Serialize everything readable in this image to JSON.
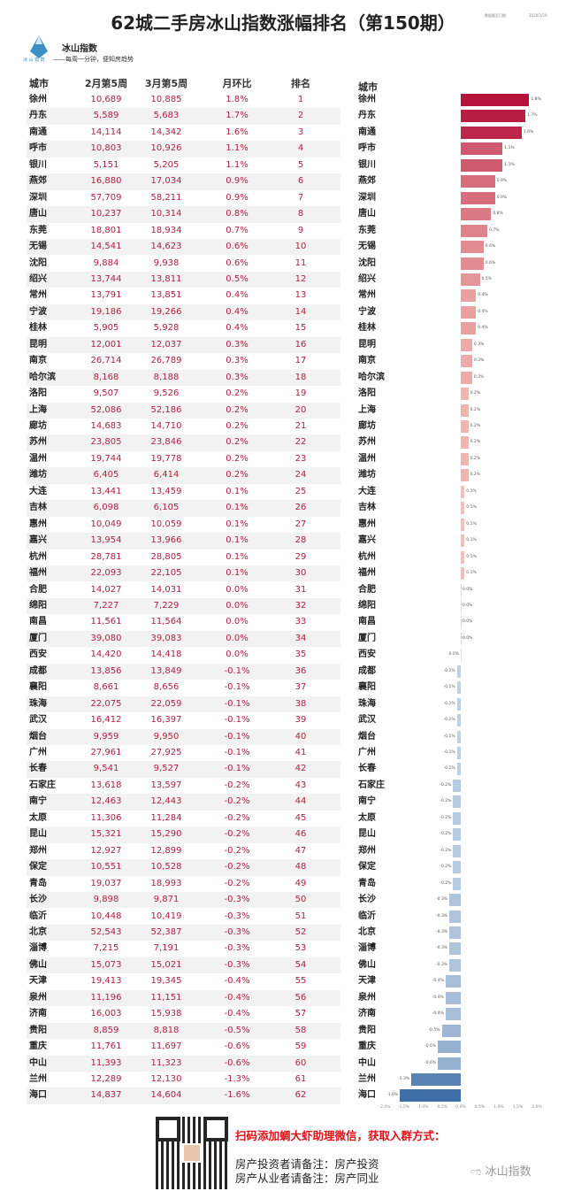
{
  "header": {
    "title": "62城二手房冰山指数涨幅排名（第150期）",
    "date_label": "数据截至日期",
    "date": "2020/3/29"
  },
  "brand": {
    "name": "冰山指数",
    "slogan": "——每周一分钟，便知房趋势",
    "logo_text": "冰 山 指 数"
  },
  "table": {
    "columns": [
      "城市",
      "2月第5周",
      "3月第5周",
      "月环比",
      "排名"
    ],
    "rows": [
      [
        "徐州",
        "10,689",
        "10,885",
        "1.8%",
        "1"
      ],
      [
        "丹东",
        "5,589",
        "5,683",
        "1.7%",
        "2"
      ],
      [
        "南通",
        "14,114",
        "14,342",
        "1.6%",
        "3"
      ],
      [
        "呼市",
        "10,803",
        "10,926",
        "1.1%",
        "4"
      ],
      [
        "银川",
        "5,151",
        "5,205",
        "1.1%",
        "5"
      ],
      [
        "燕郊",
        "16,880",
        "17,034",
        "0.9%",
        "6"
      ],
      [
        "深圳",
        "57,709",
        "58,211",
        "0.9%",
        "7"
      ],
      [
        "唐山",
        "10,237",
        "10,314",
        "0.8%",
        "8"
      ],
      [
        "东莞",
        "18,801",
        "18,934",
        "0.7%",
        "9"
      ],
      [
        "无锡",
        "14,541",
        "14,623",
        "0.6%",
        "10"
      ],
      [
        "沈阳",
        "9,884",
        "9,938",
        "0.6%",
        "11"
      ],
      [
        "绍兴",
        "13,744",
        "13,811",
        "0.5%",
        "12"
      ],
      [
        "常州",
        "13,791",
        "13,851",
        "0.4%",
        "13"
      ],
      [
        "宁波",
        "19,186",
        "19,266",
        "0.4%",
        "14"
      ],
      [
        "桂林",
        "5,905",
        "5,928",
        "0.4%",
        "15"
      ],
      [
        "昆明",
        "12,001",
        "12,037",
        "0.3%",
        "16"
      ],
      [
        "南京",
        "26,714",
        "26,789",
        "0.3%",
        "17"
      ],
      [
        "哈尔滨",
        "8,168",
        "8,188",
        "0.3%",
        "18"
      ],
      [
        "洛阳",
        "9,507",
        "9,526",
        "0.2%",
        "19"
      ],
      [
        "上海",
        "52,086",
        "52,186",
        "0.2%",
        "20"
      ],
      [
        "廊坊",
        "14,683",
        "14,710",
        "0.2%",
        "21"
      ],
      [
        "苏州",
        "23,805",
        "23,846",
        "0.2%",
        "22"
      ],
      [
        "温州",
        "19,744",
        "19,778",
        "0.2%",
        "23"
      ],
      [
        "潍坊",
        "6,405",
        "6,414",
        "0.2%",
        "24"
      ],
      [
        "大连",
        "13,441",
        "13,459",
        "0.1%",
        "25"
      ],
      [
        "吉林",
        "6,098",
        "6,105",
        "0.1%",
        "26"
      ],
      [
        "惠州",
        "10,049",
        "10,059",
        "0.1%",
        "27"
      ],
      [
        "嘉兴",
        "13,954",
        "13,966",
        "0.1%",
        "28"
      ],
      [
        "杭州",
        "28,781",
        "28,805",
        "0.1%",
        "29"
      ],
      [
        "福州",
        "22,093",
        "22,105",
        "0.1%",
        "30"
      ],
      [
        "合肥",
        "14,027",
        "14,031",
        "0.0%",
        "31"
      ],
      [
        "绵阳",
        "7,227",
        "7,229",
        "0.0%",
        "32"
      ],
      [
        "南昌",
        "11,561",
        "11,564",
        "0.0%",
        "33"
      ],
      [
        "厦门",
        "39,080",
        "39,083",
        "0.0%",
        "34"
      ],
      [
        "西安",
        "14,420",
        "14,418",
        "0.0%",
        "35"
      ],
      [
        "成都",
        "13,856",
        "13,849",
        "-0.1%",
        "36"
      ],
      [
        "襄阳",
        "8,661",
        "8,656",
        "-0.1%",
        "37"
      ],
      [
        "珠海",
        "22,075",
        "22,059",
        "-0.1%",
        "38"
      ],
      [
        "武汉",
        "16,412",
        "16,397",
        "-0.1%",
        "39"
      ],
      [
        "烟台",
        "9,959",
        "9,950",
        "-0.1%",
        "40"
      ],
      [
        "广州",
        "27,961",
        "27,925",
        "-0.1%",
        "41"
      ],
      [
        "长春",
        "9,541",
        "9,527",
        "-0.1%",
        "42"
      ],
      [
        "石家庄",
        "13,618",
        "13,597",
        "-0.2%",
        "43"
      ],
      [
        "南宁",
        "12,463",
        "12,443",
        "-0.2%",
        "44"
      ],
      [
        "太原",
        "11,306",
        "11,284",
        "-0.2%",
        "45"
      ],
      [
        "昆山",
        "15,321",
        "15,290",
        "-0.2%",
        "46"
      ],
      [
        "郑州",
        "12,927",
        "12,899",
        "-0.2%",
        "47"
      ],
      [
        "保定",
        "10,551",
        "10,528",
        "-0.2%",
        "48"
      ],
      [
        "青岛",
        "19,037",
        "18,993",
        "-0.2%",
        "49"
      ],
      [
        "长沙",
        "9,898",
        "9,871",
        "-0.3%",
        "50"
      ],
      [
        "临沂",
        "10,448",
        "10,419",
        "-0.3%",
        "51"
      ],
      [
        "北京",
        "52,543",
        "52,387",
        "-0.3%",
        "52"
      ],
      [
        "淄博",
        "7,215",
        "7,191",
        "-0.3%",
        "53"
      ],
      [
        "佛山",
        "15,073",
        "15,021",
        "-0.3%",
        "54"
      ],
      [
        "天津",
        "19,413",
        "19,345",
        "-0.4%",
        "55"
      ],
      [
        "泉州",
        "11,196",
        "11,151",
        "-0.4%",
        "56"
      ],
      [
        "济南",
        "16,003",
        "15,938",
        "-0.4%",
        "57"
      ],
      [
        "贵阳",
        "8,859",
        "8,818",
        "-0.5%",
        "58"
      ],
      [
        "重庆",
        "11,761",
        "11,697",
        "-0.6%",
        "59"
      ],
      [
        "中山",
        "11,393",
        "11,323",
        "-0.6%",
        "60"
      ],
      [
        "兰州",
        "12,289",
        "12,130",
        "-1.3%",
        "61"
      ],
      [
        "海口",
        "14,837",
        "14,604",
        "-1.6%",
        "62"
      ]
    ]
  },
  "chart_data": {
    "type": "bar",
    "orientation": "horizontal",
    "category_label": "城市",
    "xlim": [
      -2.0,
      2.0
    ],
    "unit": "%",
    "x_ticks": [
      "-2.0%",
      "-1.5%",
      "-1.0%",
      "-0.5%",
      "0.0%",
      "0.5%",
      "1.0%",
      "1.5%",
      "2.0%"
    ],
    "colors": {
      "positive_max": "#b5133a",
      "positive_min": "#f8c8c0",
      "negative_min": "#c8d8ea",
      "negative_max": "#3e6fa6"
    },
    "categories_from": "table.rows[0]",
    "values": [
      1.8,
      1.7,
      1.6,
      1.1,
      1.1,
      0.9,
      0.9,
      0.8,
      0.7,
      0.6,
      0.6,
      0.5,
      0.4,
      0.4,
      0.4,
      0.3,
      0.3,
      0.3,
      0.2,
      0.2,
      0.2,
      0.2,
      0.2,
      0.2,
      0.1,
      0.1,
      0.1,
      0.1,
      0.1,
      0.1,
      0.0,
      0.0,
      0.0,
      0.0,
      0.0,
      -0.1,
      -0.1,
      -0.1,
      -0.1,
      -0.1,
      -0.1,
      -0.1,
      -0.2,
      -0.2,
      -0.2,
      -0.2,
      -0.2,
      -0.2,
      -0.2,
      -0.3,
      -0.3,
      -0.3,
      -0.3,
      -0.3,
      -0.4,
      -0.4,
      -0.4,
      -0.5,
      -0.6,
      -0.6,
      -1.3,
      -1.6
    ]
  },
  "footer": {
    "promo_line1": "扫码添加蜩大虾助理微信，获取入群方式：",
    "promo_line2": "房产投资者请备注：房产投资",
    "promo_line3": "房产从业者请备注：房产同业",
    "watermark": "冰山指数"
  }
}
